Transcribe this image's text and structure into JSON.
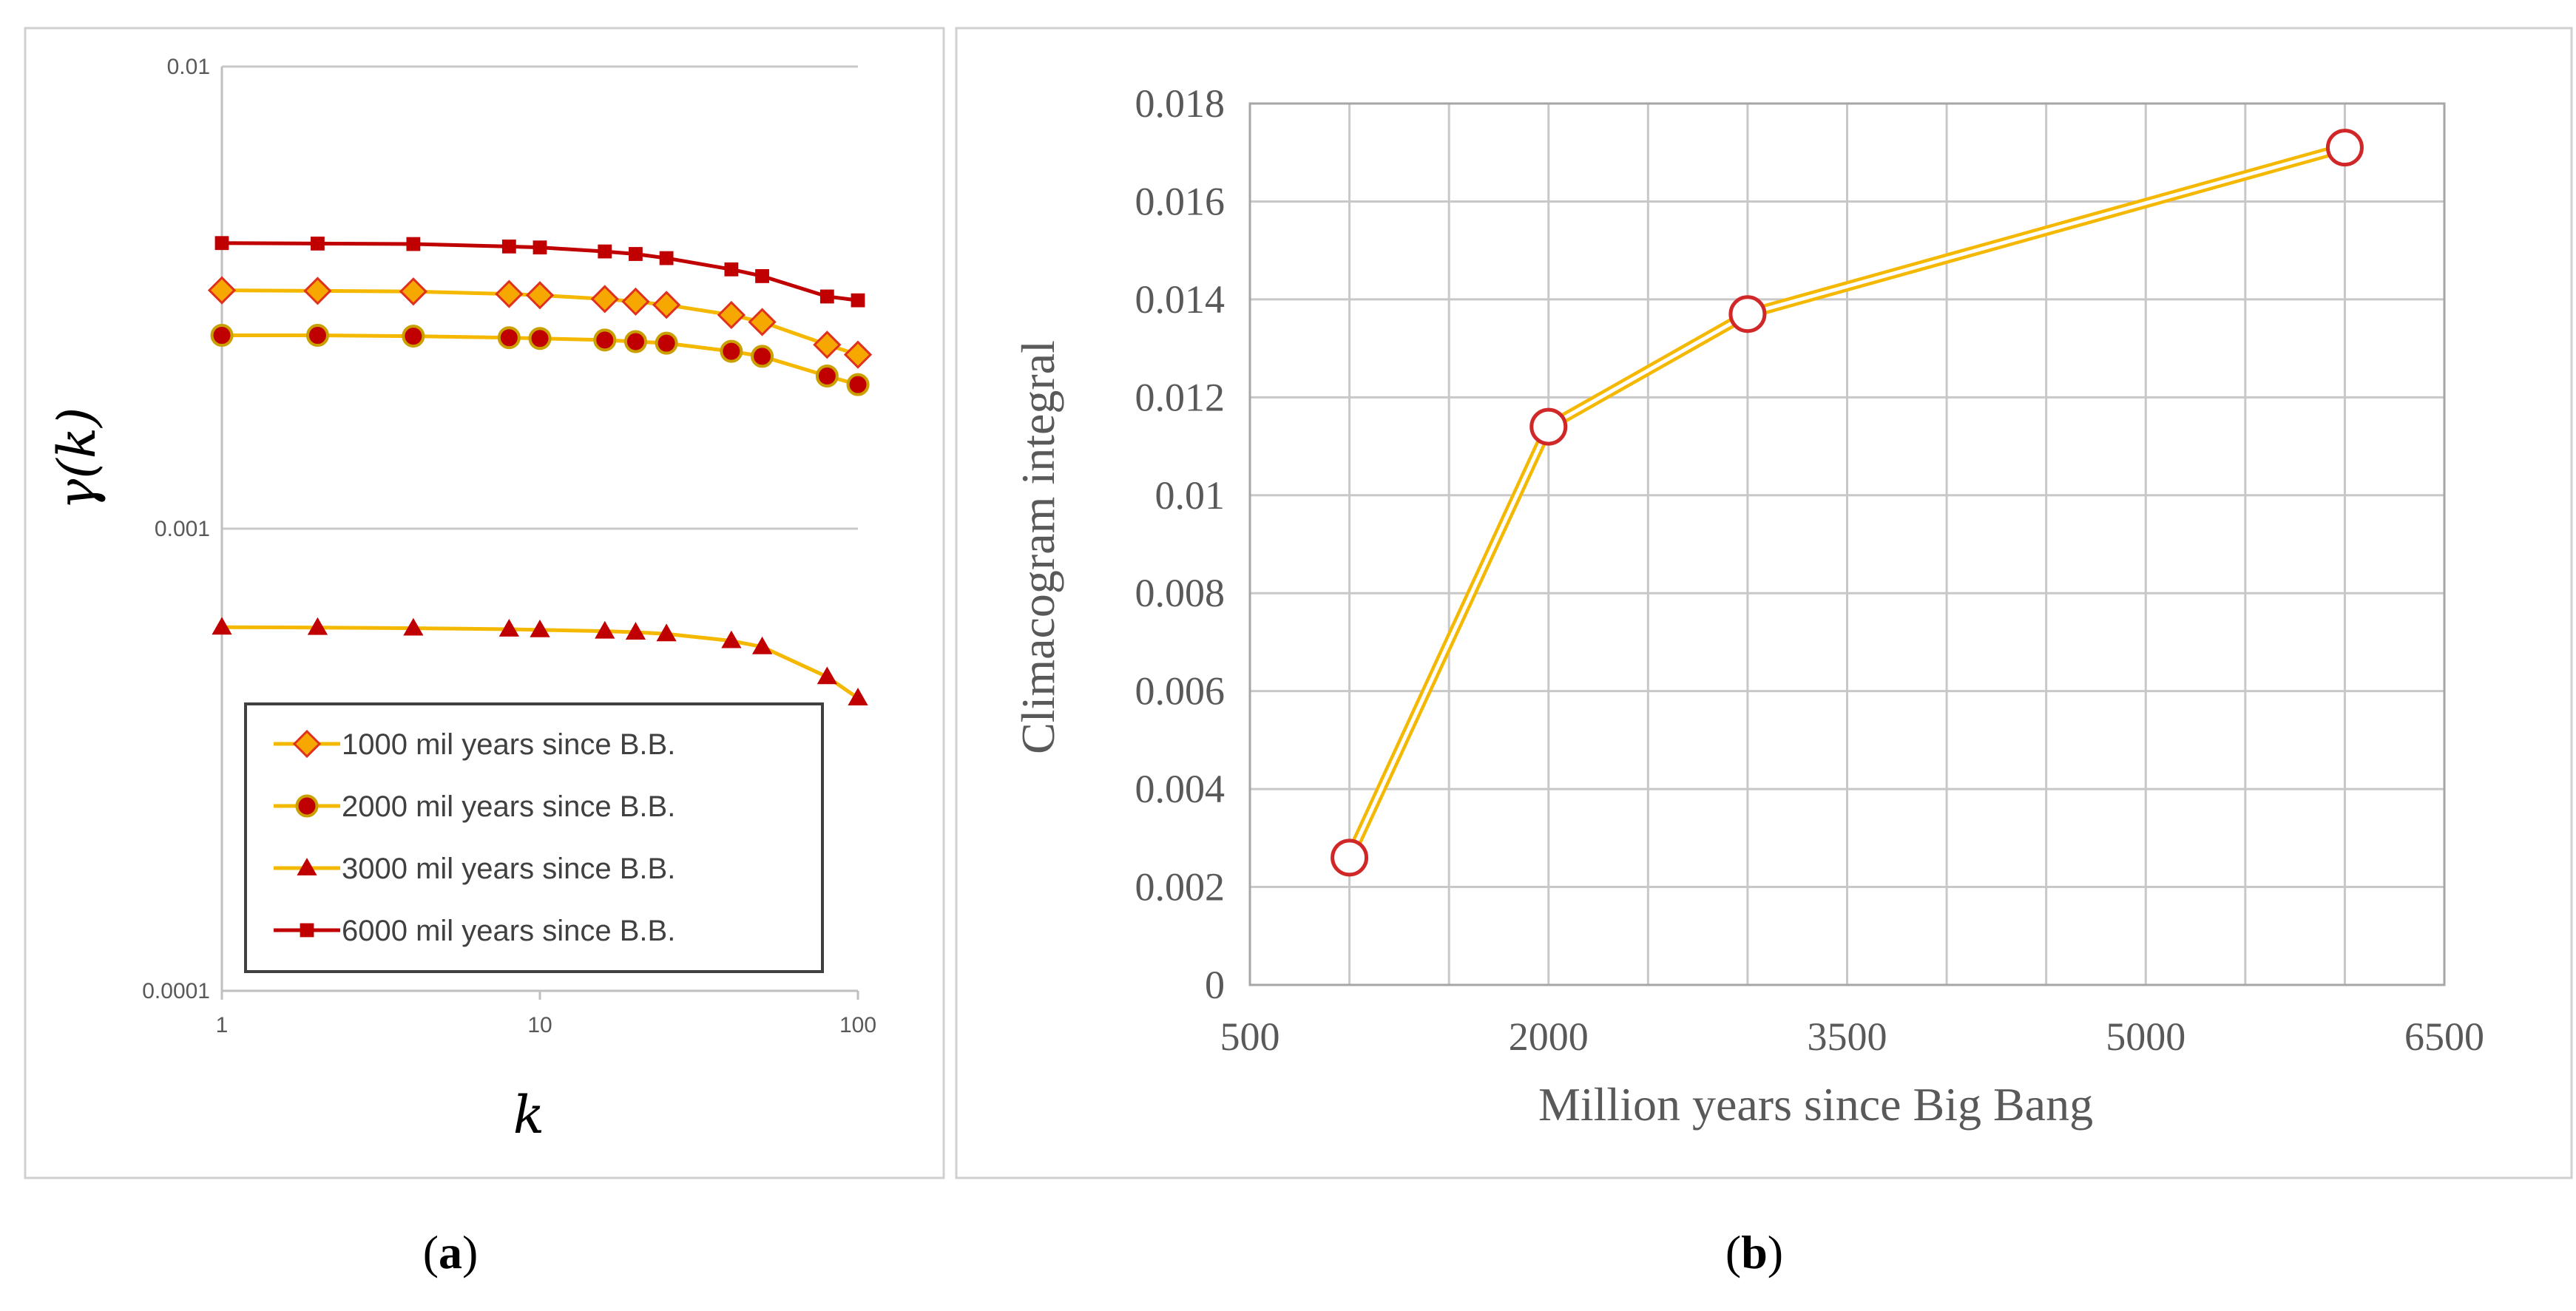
{
  "chart_data": [
    {
      "type": "line",
      "panel": "a",
      "caption_open": "(",
      "caption_letter": "a",
      "caption_close": ")",
      "xscale": "log",
      "yscale": "log",
      "xlabel": "k",
      "ylabel": "γ(k)",
      "xlim": [
        1,
        100
      ],
      "ylim": [
        0.0001,
        0.01
      ],
      "xticks": [
        1,
        10,
        100
      ],
      "xtick_labels": [
        "1",
        "10",
        "100"
      ],
      "yticks": [
        0.0001,
        0.001,
        0.01
      ],
      "ytick_labels": [
        "0.0001",
        "0.001",
        "0.01"
      ],
      "grid": "horizontal",
      "legend_position": "bottom-left",
      "x": [
        1,
        2,
        4,
        8,
        10,
        16,
        20,
        25,
        40,
        50,
        80,
        100
      ],
      "series": [
        {
          "name": "1000 mil years since B.B.",
          "marker": "diamond",
          "line_color": "#f5b800",
          "marker_fill": "#f7a800",
          "marker_stroke": "#e0301e",
          "values": [
            0.00328,
            0.00327,
            0.00326,
            0.00322,
            0.0032,
            0.00314,
            0.0031,
            0.00305,
            0.0029,
            0.0028,
            0.0025,
            0.00238
          ]
        },
        {
          "name": "2000 mil years since B.B.",
          "marker": "circle",
          "line_color": "#f5b800",
          "marker_fill": "#c00000",
          "marker_stroke": "#c9a000",
          "values": [
            0.00262,
            0.00262,
            0.00261,
            0.00259,
            0.00258,
            0.00256,
            0.00254,
            0.00252,
            0.00242,
            0.00236,
            0.00214,
            0.00205
          ]
        },
        {
          "name": "3000 mil years since B.B.",
          "marker": "triangle",
          "line_color": "#f5b800",
          "marker_fill": "#c00000",
          "marker_stroke": "#c00000",
          "values": [
            0.000612,
            0.000611,
            0.000609,
            0.000606,
            0.000604,
            0.0006,
            0.000597,
            0.000592,
            0.000572,
            0.000555,
            0.000478,
            0.00043
          ]
        },
        {
          "name": "6000 mil years since B.B.",
          "marker": "square",
          "line_color": "#c00000",
          "marker_fill": "#c00000",
          "marker_stroke": "#c00000",
          "values": [
            0.00415,
            0.00414,
            0.00413,
            0.00408,
            0.00406,
            0.00398,
            0.00393,
            0.00385,
            0.00364,
            0.00352,
            0.00318,
            0.00312
          ]
        }
      ]
    },
    {
      "type": "line",
      "panel": "b",
      "caption_open": "(",
      "caption_letter": "b",
      "caption_close": ")",
      "xlabel": "Million years since Big Bang",
      "ylabel": "Climacogram integral",
      "xlim": [
        500,
        6500
      ],
      "ylim": [
        0,
        0.018
      ],
      "xticks": [
        500,
        2000,
        3500,
        5000,
        6500
      ],
      "xtick_labels": [
        "500",
        "2000",
        "3500",
        "5000",
        "6500"
      ],
      "yticks": [
        0,
        0.002,
        0.004,
        0.006,
        0.008,
        0.01,
        0.012,
        0.014,
        0.016,
        0.018
      ],
      "ytick_labels": [
        "0",
        "0.002",
        "0.004",
        "0.006",
        "0.008",
        "0.01",
        "0.012",
        "0.014",
        "0.016",
        "0.018"
      ],
      "grid": "both",
      "x": [
        1000,
        2000,
        3000,
        6000
      ],
      "values": [
        0.0026,
        0.0114,
        0.0137,
        0.0171
      ],
      "line_color": "#f5b800",
      "marker": "open-circle",
      "marker_stroke": "#d02828"
    }
  ]
}
